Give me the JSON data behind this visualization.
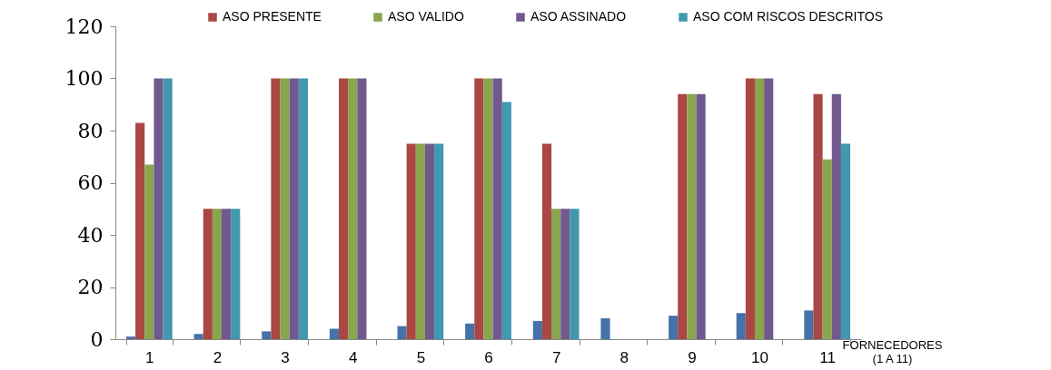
{
  "chart_data": {
    "type": "bar",
    "xlabel": "FORNECEDORES\n(1 A 11)",
    "categories": [
      "1",
      "2",
      "3",
      "4",
      "5",
      "6",
      "7",
      "8",
      "9",
      "10",
      "11"
    ],
    "series": [
      {
        "color": "#4572a7",
        "values": [
          1,
          2,
          3,
          4,
          5,
          6,
          7,
          8,
          9,
          10,
          11
        ]
      },
      {
        "name": "ASO PRESENTE",
        "color": "#aa4643",
        "values": [
          83,
          50,
          100,
          100,
          75,
          100,
          75,
          0,
          94,
          100,
          94
        ]
      },
      {
        "name": "ASO VALIDO",
        "color": "#89a54e",
        "values": [
          67,
          50,
          100,
          100,
          75,
          100,
          50,
          0,
          94,
          100,
          69
        ]
      },
      {
        "name": "ASO ASSINADO",
        "color": "#71588f",
        "values": [
          100,
          50,
          100,
          100,
          75,
          100,
          50,
          0,
          94,
          100,
          94
        ]
      },
      {
        "name": "ASO COM RISCOS DESCRITOS",
        "color": "#4198af",
        "values": [
          100,
          50,
          100,
          0,
          75,
          91,
          50,
          0,
          0,
          0,
          75
        ]
      }
    ],
    "ylim": [
      0,
      120
    ],
    "yticks": [
      0,
      20,
      40,
      60,
      80,
      100,
      120
    ],
    "grid": false,
    "legend": "top"
  }
}
